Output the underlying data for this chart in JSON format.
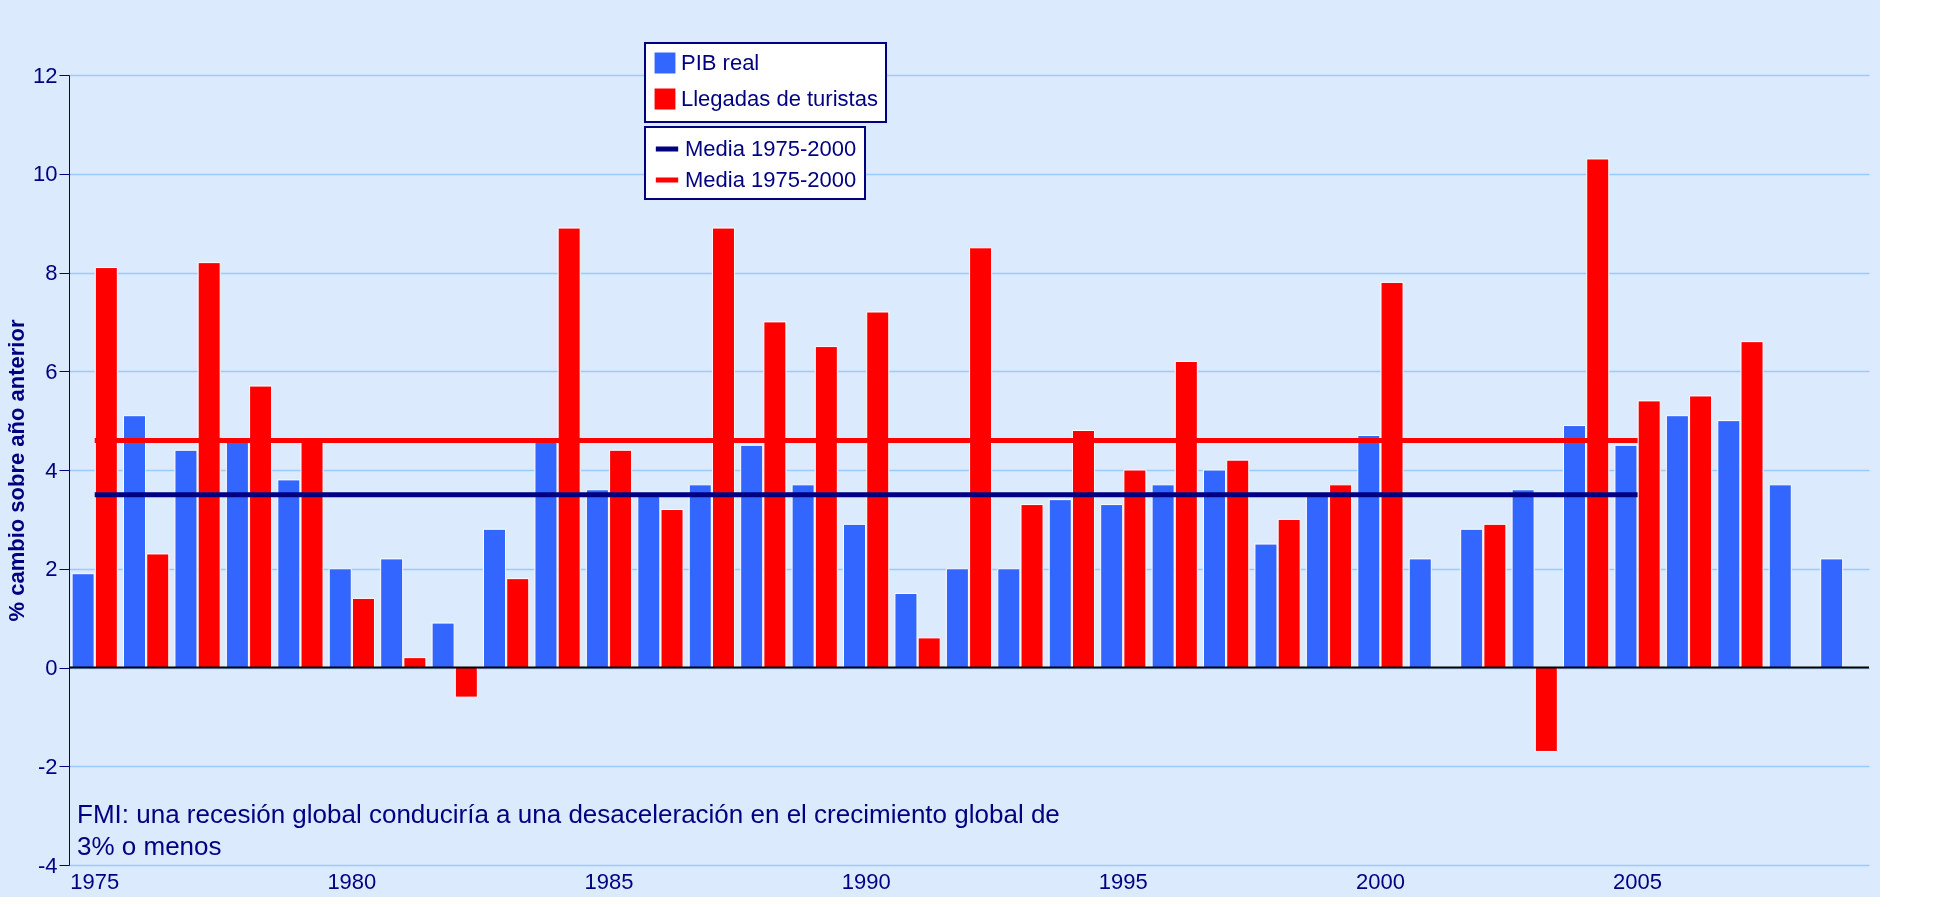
{
  "chart_data": {
    "type": "bar",
    "ylabel": "% cambio sobre año anterior",
    "categories": [
      "1975",
      null,
      null,
      null,
      null,
      "1980",
      null,
      null,
      null,
      null,
      "1985",
      null,
      null,
      null,
      null,
      "1990",
      null,
      null,
      null,
      null,
      "1995",
      null,
      null,
      null,
      null,
      "2000",
      null,
      null,
      null,
      null,
      "2005",
      null,
      null,
      null,
      null
    ],
    "series": [
      {
        "name": "PIB real",
        "color": "#3366ff",
        "values": [
          1.9,
          5.1,
          4.4,
          4.6,
          3.8,
          2.0,
          2.2,
          0.9,
          2.8,
          4.6,
          3.6,
          3.5,
          3.7,
          4.5,
          3.7,
          2.9,
          1.5,
          2.0,
          2.0,
          3.4,
          3.3,
          3.7,
          4.0,
          2.5,
          3.5,
          4.7,
          2.2,
          2.8,
          3.6,
          4.9,
          4.5,
          5.1,
          5.0,
          3.7,
          2.2
        ]
      },
      {
        "name": "Llegadas de turistas",
        "color": "#ff0000",
        "values": [
          8.1,
          2.3,
          8.2,
          5.7,
          4.6,
          1.4,
          0.2,
          -0.6,
          1.8,
          8.9,
          4.4,
          3.2,
          8.9,
          7.0,
          6.5,
          7.2,
          0.6,
          8.5,
          3.3,
          4.8,
          4.0,
          6.2,
          4.2,
          3.0,
          3.7,
          7.8,
          null,
          2.9,
          -1.7,
          10.3,
          5.4,
          5.5,
          6.6,
          null,
          null
        ]
      },
      {
        "name": "Media 1975-2000",
        "type": "line",
        "color": "#000080",
        "values": [
          3.5,
          3.5,
          3.5,
          3.5,
          3.5,
          3.5,
          3.5,
          3.5,
          3.5,
          3.5,
          3.5,
          3.5,
          3.5,
          3.5,
          3.5,
          3.5,
          3.5,
          3.5,
          3.5,
          3.5,
          3.5,
          3.5,
          3.5,
          3.5,
          3.5,
          3.5,
          3.5,
          3.5,
          3.5,
          3.5,
          3.5,
          null,
          null,
          null,
          null
        ]
      },
      {
        "name": "Media 1975-2000",
        "type": "line",
        "color": "#ff0000",
        "values": [
          4.6,
          4.6,
          4.6,
          4.6,
          4.6,
          4.6,
          4.6,
          4.6,
          4.6,
          4.6,
          4.6,
          4.6,
          4.6,
          4.6,
          4.6,
          4.6,
          4.6,
          4.6,
          4.6,
          4.6,
          4.6,
          4.6,
          4.6,
          4.6,
          4.6,
          4.6,
          4.6,
          4.6,
          4.6,
          4.6,
          4.6,
          null,
          null,
          null,
          null
        ]
      }
    ],
    "ylim": [
      -4,
      12
    ],
    "yticks": [
      -4,
      -2,
      0,
      2,
      4,
      6,
      8,
      10,
      12
    ],
    "grid": "y",
    "legend": "top",
    "annotations": [
      "FMI: una recesión global conduciría a una desaceleración en el crecimiento global de 3% o menos"
    ]
  }
}
